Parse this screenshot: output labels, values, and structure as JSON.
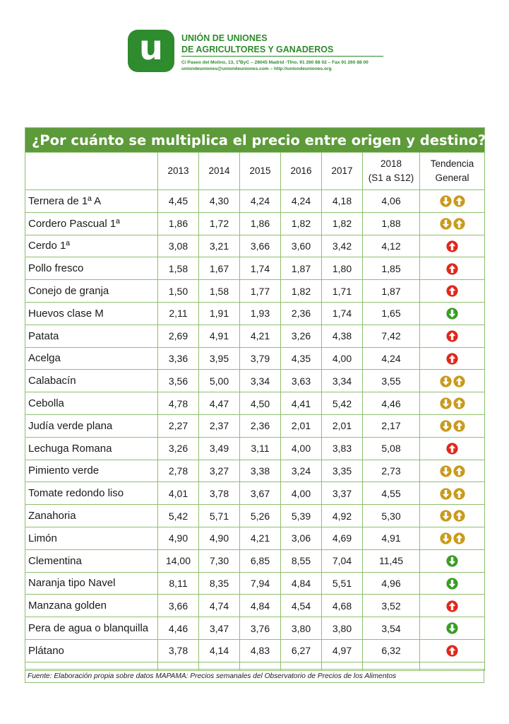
{
  "header": {
    "logo_letter": "u",
    "org_line1": "UNIÓN DE UNIONES",
    "org_line2": "DE AGRICULTORES Y GANADEROS",
    "address": "C/ Paseo del Molino, 13, 1ºByC – 28045 Madrid -Tfno. 91 260 88 02 – Fax 91 260 88 00",
    "contact": "uniondeuniones@uniondeuniones.com – http://uniondeuniones.org"
  },
  "colors": {
    "brand_green": "#2e8b2e",
    "header_green": "#5d9a3a",
    "grid_green": "#8fbf6e",
    "up_red": "#e0281b",
    "down_green": "#3a9d24",
    "mixed_gold": "#c99a1a"
  },
  "table": {
    "title": "¿Por cuánto se multiplica el precio entre origen y destino?",
    "columns": [
      "2013",
      "2014",
      "2015",
      "2016",
      "2017",
      "2018\n(S1 a S12)",
      "Tendencia\nGeneral"
    ],
    "rows": [
      {
        "name": "Ternera de 1ª A",
        "values": [
          "4,45",
          "4,30",
          "4,24",
          "4,24",
          "4,18",
          "4,06"
        ],
        "trend": "mixed"
      },
      {
        "name": "Cordero Pascual 1ª",
        "values": [
          "1,86",
          "1,72",
          "1,86",
          "1,82",
          "1,82",
          "1,88"
        ],
        "trend": "mixed"
      },
      {
        "name": "Cerdo 1ª",
        "values": [
          "3,08",
          "3,21",
          "3,66",
          "3,60",
          "3,42",
          "4,12"
        ],
        "trend": "up"
      },
      {
        "name": "Pollo fresco",
        "values": [
          "1,58",
          "1,67",
          "1,74",
          "1,87",
          "1,80",
          "1,85"
        ],
        "trend": "up"
      },
      {
        "name": "Conejo de granja",
        "values": [
          "1,50",
          "1,58",
          "1,77",
          "1,82",
          "1,71",
          "1,87"
        ],
        "trend": "up"
      },
      {
        "name": "Huevos clase M",
        "values": [
          "2,11",
          "1,91",
          "1,93",
          "2,36",
          "1,74",
          "1,65"
        ],
        "trend": "down"
      },
      {
        "name": "Patata",
        "values": [
          "2,69",
          "4,91",
          "4,21",
          "3,26",
          "4,38",
          "7,42"
        ],
        "trend": "up"
      },
      {
        "name": "Acelga",
        "values": [
          "3,36",
          "3,95",
          "3,79",
          "4,35",
          "4,00",
          "4,24"
        ],
        "trend": "up"
      },
      {
        "name": "Calabacín",
        "values": [
          "3,56",
          "5,00",
          "3,34",
          "3,63",
          "3,34",
          "3,55"
        ],
        "trend": "mixed"
      },
      {
        "name": "Cebolla",
        "values": [
          "4,78",
          "4,47",
          "4,50",
          "4,41",
          "5,42",
          "4,46"
        ],
        "trend": "mixed"
      },
      {
        "name": "Judía verde plana",
        "values": [
          "2,27",
          "2,37",
          "2,36",
          "2,01",
          "2,01",
          "2,17"
        ],
        "trend": "mixed"
      },
      {
        "name": "Lechuga Romana",
        "values": [
          "3,26",
          "3,49",
          "3,11",
          "4,00",
          "3,83",
          "5,08"
        ],
        "trend": "up"
      },
      {
        "name": "Pimiento verde",
        "values": [
          "2,78",
          "3,27",
          "3,38",
          "3,24",
          "3,35",
          "2,73"
        ],
        "trend": "mixed"
      },
      {
        "name": "Tomate redondo liso",
        "values": [
          "4,01",
          "3,78",
          "3,67",
          "4,00",
          "3,37",
          "4,55"
        ],
        "trend": "mixed"
      },
      {
        "name": "Zanahoria",
        "values": [
          "5,42",
          "5,71",
          "5,26",
          "5,39",
          "4,92",
          "5,30"
        ],
        "trend": "mixed"
      },
      {
        "name": "Limón",
        "values": [
          "4,90",
          "4,90",
          "4,21",
          "3,06",
          "4,69",
          "4,91"
        ],
        "trend": "mixed"
      },
      {
        "name": "Clementina",
        "values": [
          "14,00",
          "7,30",
          "6,85",
          "8,55",
          "7,04",
          "11,45"
        ],
        "trend": "down"
      },
      {
        "name": "Naranja tipo Navel",
        "values": [
          "8,11",
          "8,35",
          "7,94",
          "4,84",
          "5,51",
          "4,96"
        ],
        "trend": "down"
      },
      {
        "name": "Manzana golden",
        "values": [
          "3,66",
          "4,74",
          "4,84",
          "4,54",
          "4,68",
          "3,52"
        ],
        "trend": "up"
      },
      {
        "name": "Pera de agua o blanquilla",
        "values": [
          "4,46",
          "3,47",
          "3,76",
          "3,80",
          "3,80",
          "3,54"
        ],
        "trend": "down"
      },
      {
        "name": "Plátano",
        "values": [
          "3,78",
          "4,14",
          "4,83",
          "6,27",
          "4,97",
          "6,32"
        ],
        "trend": "up"
      }
    ],
    "footnote": "Fuente: Elaboración propia sobre datos MAPAMA: Precios semanales del Observatorio de Precios de los Alimentos"
  }
}
